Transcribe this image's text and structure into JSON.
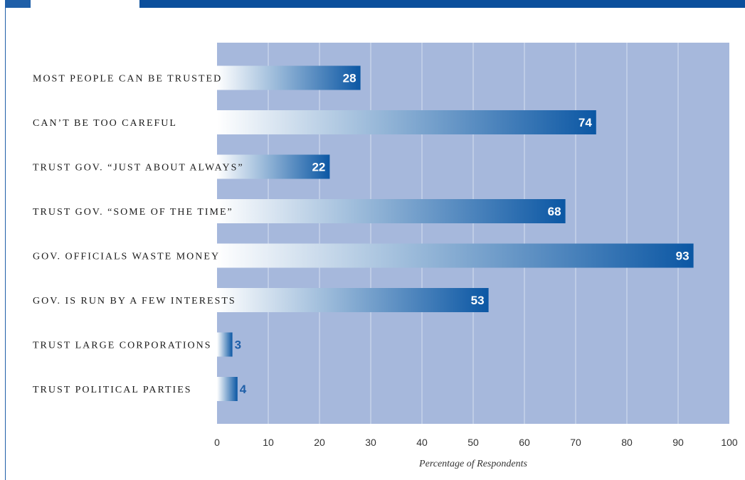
{
  "colors": {
    "plot_background": "#a6b8dc",
    "gridline": "#d7e0f0",
    "bar_dark": "#0b57a4",
    "bar_light": "#ffffff",
    "frame_blue": "#1f5fa8"
  },
  "chart_data": {
    "type": "bar",
    "orientation": "horizontal",
    "categories": [
      "MOST PEOPLE CAN BE TRUSTED",
      "CAN’T BE TOO CAREFUL",
      "TRUST GOV. “JUST ABOUT ALWAYS”",
      "TRUST GOV. “SOME OF THE TIME”",
      "GOV. OFFICIALS WASTE MONEY",
      "GOV. IS RUN BY A FEW INTERESTS",
      "TRUST LARGE CORPORATIONS",
      "TRUST POLITICAL PARTIES"
    ],
    "values": [
      28,
      74,
      22,
      68,
      93,
      53,
      3,
      4
    ],
    "xlabel": "Percentage of Respondents",
    "xlim": [
      0,
      100
    ],
    "xticks": [
      0,
      10,
      20,
      30,
      40,
      50,
      60,
      70,
      80,
      90,
      100
    ],
    "grid": true,
    "legend": "none"
  }
}
